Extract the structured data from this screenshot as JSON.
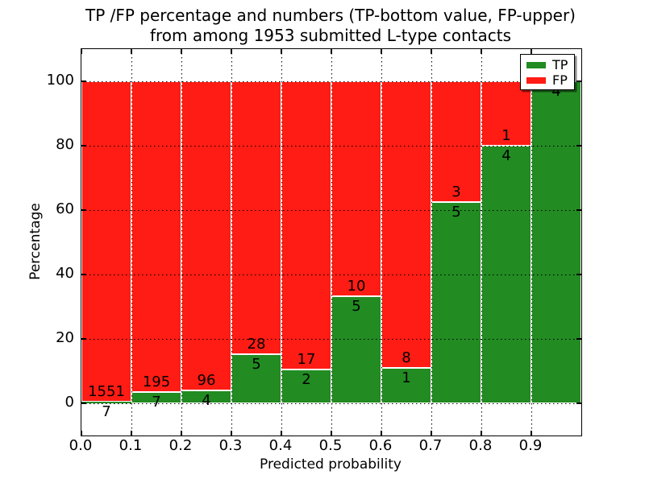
{
  "title": {
    "line1": "TP /FP percentage and numbers (TP-bottom value, FP-upper)",
    "line2": "from among 1953 submitted L-type contacts"
  },
  "axes": {
    "xlabel": "Predicted probability",
    "ylabel": "Percentage",
    "xtick_labels": [
      "0.0",
      "0.1",
      "0.2",
      "0.3",
      "0.4",
      "0.5",
      "0.6",
      "0.7",
      "0.8",
      "0.9"
    ],
    "ytick_labels": [
      "0",
      "20",
      "40",
      "60",
      "80",
      "100"
    ],
    "ytick_values": [
      0,
      20,
      40,
      60,
      80,
      100
    ],
    "xlim": [
      0.0,
      1.0
    ],
    "ylim": [
      -10,
      110
    ]
  },
  "legend": {
    "position": "upper right",
    "items": [
      {
        "label": "TP",
        "color": "#228b22"
      },
      {
        "label": "FP",
        "color": "#ff1c14"
      }
    ]
  },
  "colors": {
    "tp": "#228b22",
    "fp": "#ff1c14",
    "bar_edge": "#ffffff",
    "grid": "#000000",
    "frame": "#000000",
    "text": "#000000",
    "background": "#ffffff"
  },
  "chart_data": {
    "type": "bar",
    "stacked": true,
    "normalized_to_percent": true,
    "title": "TP /FP percentage and numbers (TP-bottom value, FP-upper) from among 1953 submitted L-type contacts",
    "xlabel": "Predicted probability",
    "ylabel": "Percentage",
    "xlim": [
      0.0,
      1.0
    ],
    "ylim": [
      -10,
      110
    ],
    "grid": true,
    "legend_position": "upper right",
    "total_contacts": 1953,
    "bin_width": 0.1,
    "bins": [
      {
        "range": [
          0.0,
          0.1
        ],
        "tp": 7,
        "fp": 1551,
        "tp_pct": 0.45,
        "tp_label": "7",
        "fp_label": "1551"
      },
      {
        "range": [
          0.1,
          0.2
        ],
        "tp": 7,
        "fp": 195,
        "tp_pct": 3.47,
        "tp_label": "7",
        "fp_label": "195"
      },
      {
        "range": [
          0.2,
          0.3
        ],
        "tp": 4,
        "fp": 96,
        "tp_pct": 4.0,
        "tp_label": "4",
        "fp_label": "96"
      },
      {
        "range": [
          0.3,
          0.4
        ],
        "tp": 5,
        "fp": 28,
        "tp_pct": 15.15,
        "tp_label": "5",
        "fp_label": "28"
      },
      {
        "range": [
          0.4,
          0.5
        ],
        "tp": 2,
        "fp": 17,
        "tp_pct": 10.53,
        "tp_label": "2",
        "fp_label": "17"
      },
      {
        "range": [
          0.5,
          0.6
        ],
        "tp": 5,
        "fp": 10,
        "tp_pct": 33.33,
        "tp_label": "5",
        "fp_label": "10"
      },
      {
        "range": [
          0.6,
          0.7
        ],
        "tp": 1,
        "fp": 8,
        "tp_pct": 11.11,
        "tp_label": "1",
        "fp_label": "8"
      },
      {
        "range": [
          0.7,
          0.8
        ],
        "tp": 5,
        "fp": 3,
        "tp_pct": 62.5,
        "tp_label": "5",
        "fp_label": "3"
      },
      {
        "range": [
          0.8,
          0.9
        ],
        "tp": 4,
        "fp": 1,
        "tp_pct": 80.0,
        "tp_label": "4",
        "fp_label": "1"
      },
      {
        "range": [
          0.9,
          1.0
        ],
        "tp": 4,
        "fp": 0,
        "tp_pct": 100.0,
        "tp_label": "4",
        "fp_label": ""
      }
    ],
    "series": [
      {
        "name": "TP",
        "color": "#228b22",
        "values": [
          7,
          7,
          4,
          5,
          2,
          5,
          1,
          5,
          4,
          4
        ]
      },
      {
        "name": "FP",
        "color": "#ff1c14",
        "values": [
          1551,
          195,
          96,
          28,
          17,
          10,
          8,
          3,
          1,
          0
        ]
      }
    ]
  }
}
